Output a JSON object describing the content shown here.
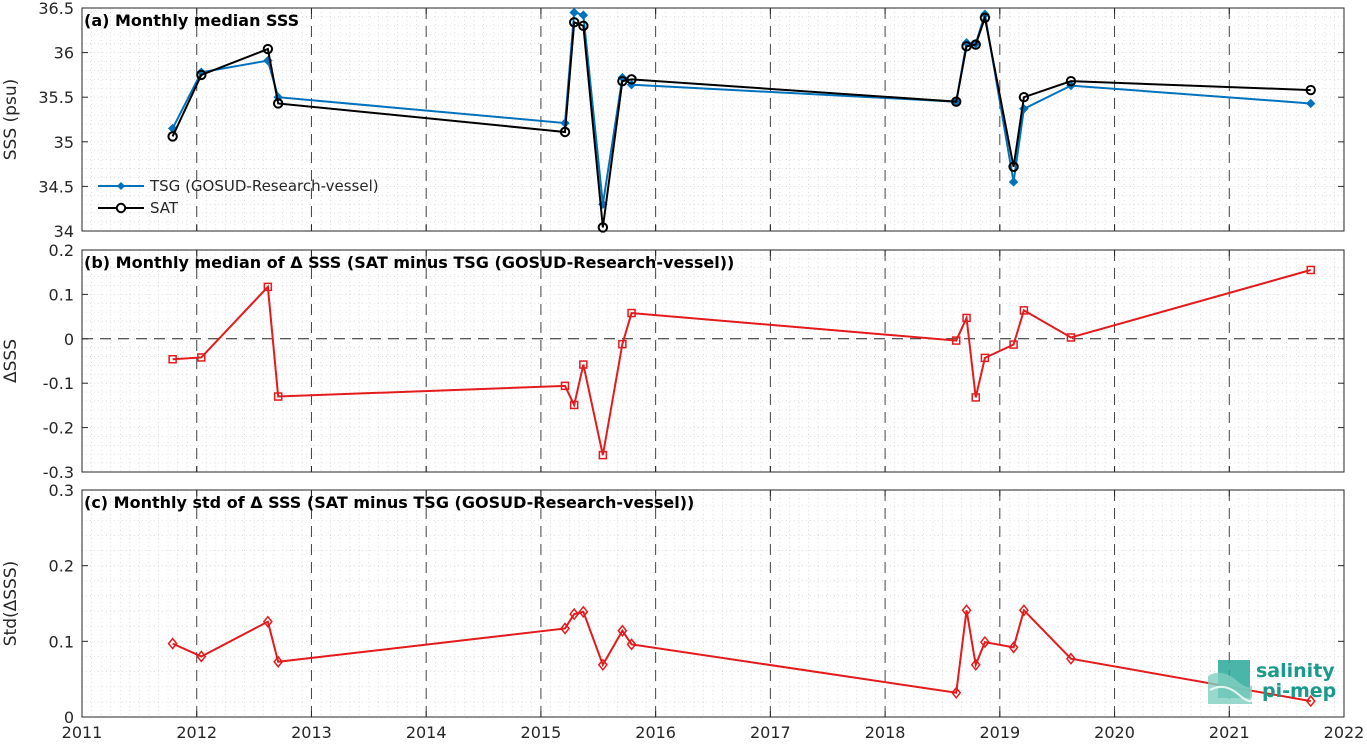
{
  "colors": {
    "tsg": "#0072BD",
    "sat": "#000000",
    "delta": "#E41A1C",
    "logo": "#1a9a8a"
  },
  "logo": {
    "line1": "salinity",
    "line2": "pi-mep",
    "icon": "salinity-pimep-wave-icon"
  },
  "chart_data": [
    {
      "type": "line",
      "title": "(a) Monthly median SSS",
      "xlabel": "",
      "ylabel": "SSS (psu)",
      "xlim": [
        2011,
        2022
      ],
      "ylim": [
        34,
        36.5
      ],
      "xticks": [
        "2011",
        "2012",
        "2013",
        "2014",
        "2015",
        "2016",
        "2017",
        "2018",
        "2019",
        "2020",
        "2021",
        "2022"
      ],
      "yticks": [
        "34",
        "34.5",
        "35",
        "35.5",
        "36",
        "36.5"
      ],
      "grid": true,
      "legend": "bottom-left",
      "series": [
        {
          "name": "TSG (GOSUD-Research-vessel)",
          "x": [
            2011.79,
            2012.04,
            2012.62,
            2012.71,
            2015.21,
            2015.29,
            2015.37,
            2015.54,
            2015.71,
            2015.79,
            2018.62,
            2018.71,
            2018.79,
            2018.87,
            2019.12,
            2019.21,
            2019.62,
            2021.71
          ],
          "y": [
            35.15,
            35.78,
            35.91,
            35.5,
            35.21,
            36.45,
            36.42,
            34.3,
            35.72,
            35.64,
            35.45,
            36.11,
            36.1,
            36.43,
            34.55,
            35.37,
            35.63,
            35.43
          ]
        },
        {
          "name": "SAT",
          "x": [
            2011.79,
            2012.04,
            2012.62,
            2012.71,
            2015.21,
            2015.29,
            2015.37,
            2015.54,
            2015.71,
            2015.79,
            2018.62,
            2018.71,
            2018.79,
            2018.87,
            2019.12,
            2019.21,
            2019.62,
            2021.71
          ],
          "y": [
            35.06,
            35.75,
            36.04,
            35.43,
            35.11,
            36.34,
            36.3,
            34.04,
            35.68,
            35.7,
            35.45,
            36.07,
            36.09,
            36.39,
            34.72,
            35.5,
            35.68,
            35.58
          ]
        }
      ]
    },
    {
      "type": "line",
      "title": "(b) Monthly median of Δ SSS (SAT minus TSG (GOSUD-Research-vessel))",
      "xlabel": "",
      "ylabel": "ΔSSS",
      "xlim": [
        2011,
        2022
      ],
      "ylim": [
        -0.3,
        0.2
      ],
      "xticks": [
        "2011",
        "2012",
        "2013",
        "2014",
        "2015",
        "2016",
        "2017",
        "2018",
        "2019",
        "2020",
        "2021",
        "2022"
      ],
      "yticks": [
        "-0.3",
        "-0.2",
        "-0.1",
        "0",
        "0.1",
        "0.2"
      ],
      "grid": true,
      "zero_line": true,
      "series": [
        {
          "x": [
            2011.79,
            2012.04,
            2012.62,
            2012.71,
            2015.21,
            2015.29,
            2015.37,
            2015.54,
            2015.71,
            2015.79,
            2018.62,
            2018.71,
            2018.79,
            2018.87,
            2019.12,
            2019.21,
            2019.62,
            2021.71
          ],
          "y": [
            -0.046,
            -0.042,
            0.117,
            -0.13,
            -0.106,
            -0.149,
            -0.058,
            -0.262,
            -0.012,
            0.058,
            -0.004,
            0.047,
            -0.132,
            -0.043,
            -0.013,
            0.064,
            0.003,
            0.155
          ]
        }
      ]
    },
    {
      "type": "line",
      "title": "(c) Monthly std of Δ SSS (SAT minus TSG (GOSUD-Research-vessel))",
      "xlabel": "",
      "ylabel": "Std(ΔSSS)",
      "xlim": [
        2011,
        2022
      ],
      "ylim": [
        0,
        0.3
      ],
      "xticks": [
        "2011",
        "2012",
        "2013",
        "2014",
        "2015",
        "2016",
        "2017",
        "2018",
        "2019",
        "2020",
        "2021",
        "2022"
      ],
      "yticks": [
        "0",
        "0.1",
        "0.2",
        "0.3"
      ],
      "grid": true,
      "series": [
        {
          "x": [
            2011.79,
            2012.04,
            2012.62,
            2012.71,
            2015.21,
            2015.29,
            2015.37,
            2015.54,
            2015.71,
            2015.79,
            2018.62,
            2018.71,
            2018.79,
            2018.87,
            2019.12,
            2019.21,
            2019.62,
            2021.71
          ],
          "y": [
            0.097,
            0.08,
            0.126,
            0.073,
            0.117,
            0.136,
            0.139,
            0.069,
            0.114,
            0.096,
            0.032,
            0.141,
            0.069,
            0.099,
            0.092,
            0.141,
            0.077,
            0.021
          ]
        }
      ]
    }
  ]
}
